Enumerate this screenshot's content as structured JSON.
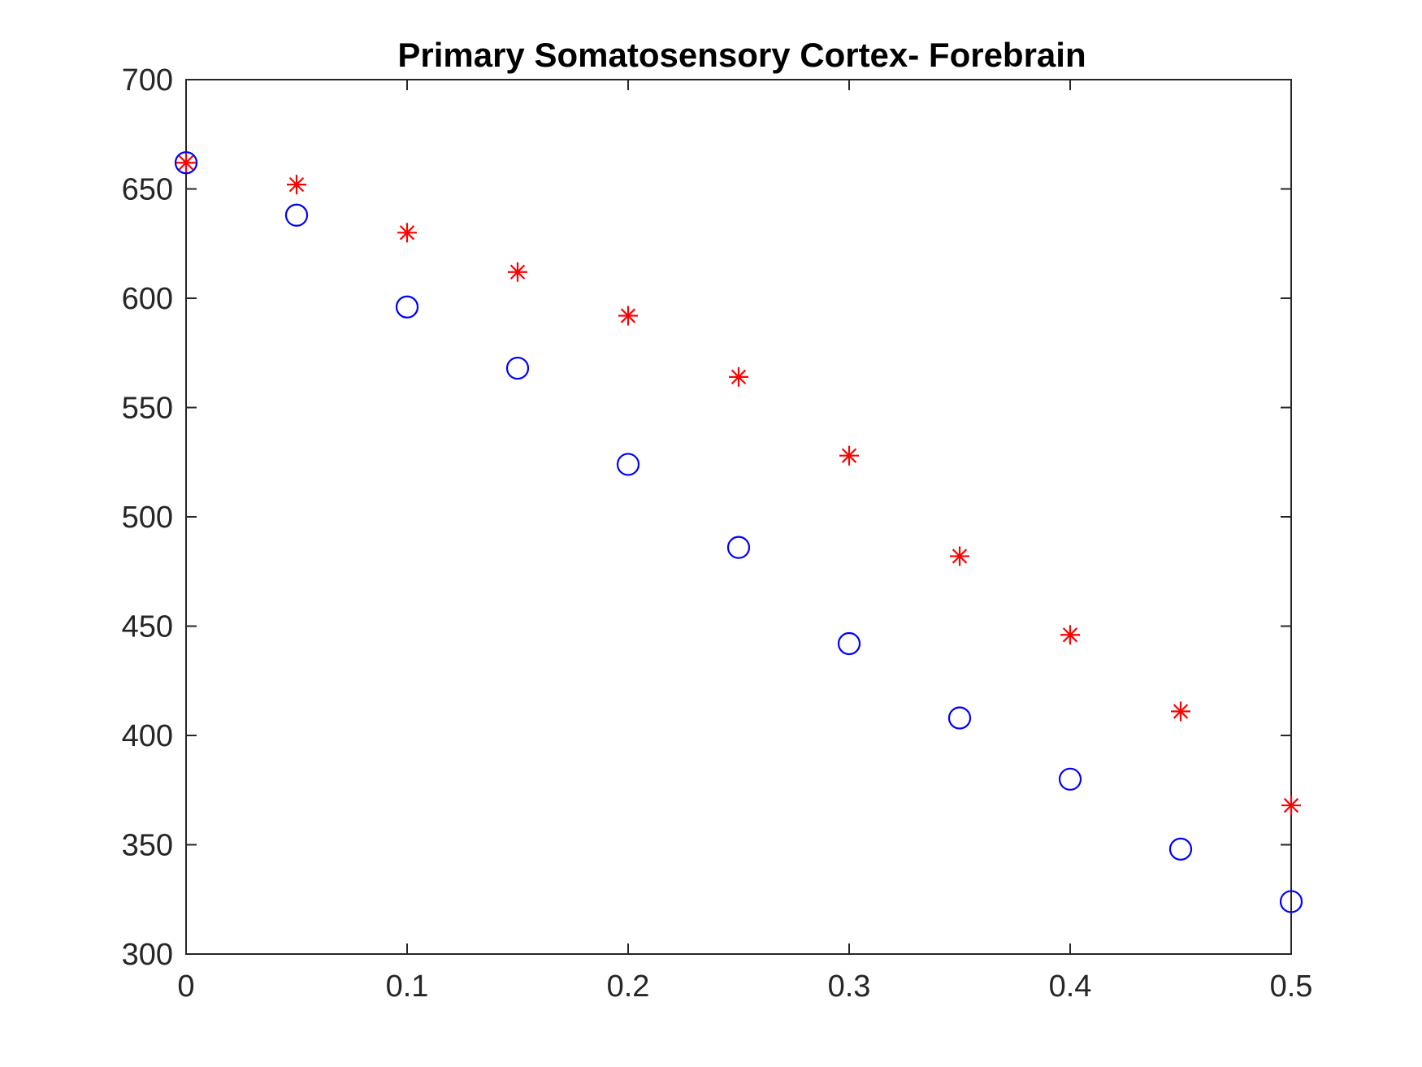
{
  "chart_data": {
    "type": "scatter",
    "title": "Primary Somatosensory Cortex- Forebrain",
    "xlabel": "",
    "ylabel": "",
    "xlim": [
      0,
      0.5
    ],
    "ylim": [
      300,
      700
    ],
    "x_ticks": [
      0,
      0.1,
      0.2,
      0.3,
      0.4,
      0.5
    ],
    "x_tick_labels": [
      "0",
      "0.1",
      "0.2",
      "0.3",
      "0.4",
      "0.5"
    ],
    "y_ticks": [
      300,
      350,
      400,
      450,
      500,
      550,
      600,
      650,
      700
    ],
    "y_tick_labels": [
      "300",
      "350",
      "400",
      "450",
      "500",
      "550",
      "600",
      "650",
      "700"
    ],
    "grid": false,
    "legend": "none",
    "series": [
      {
        "marker": "circle",
        "color": "#0000ff",
        "x": [
          0,
          0.05,
          0.1,
          0.15,
          0.2,
          0.25,
          0.3,
          0.35,
          0.4,
          0.45,
          0.5
        ],
        "y": [
          662,
          638,
          596,
          568,
          524,
          486,
          442,
          408,
          380,
          348,
          324
        ]
      },
      {
        "marker": "asterisk",
        "color": "#ff0000",
        "x": [
          0,
          0.05,
          0.1,
          0.15,
          0.2,
          0.25,
          0.3,
          0.35,
          0.4,
          0.45,
          0.5
        ],
        "y": [
          662,
          652,
          630,
          612,
          592,
          564,
          528,
          482,
          446,
          411,
          368
        ]
      }
    ]
  }
}
